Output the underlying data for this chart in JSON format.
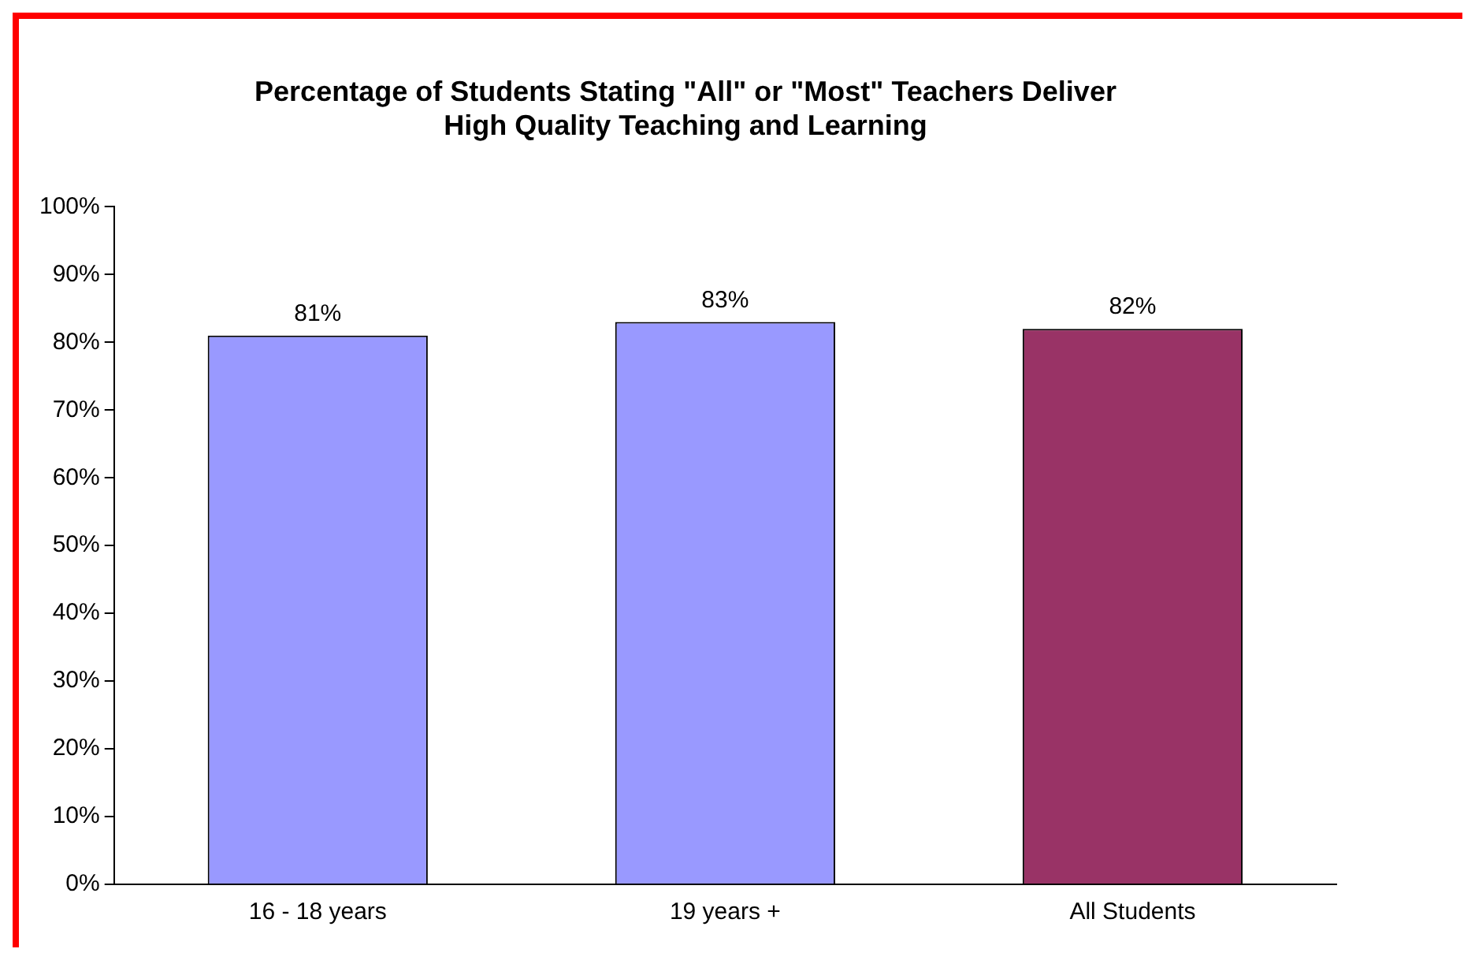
{
  "chart_data": {
    "type": "bar",
    "title": "Percentage of Students Stating \"All\" or \"Most\" Teachers Deliver\nHigh Quality Teaching and Learning",
    "categories": [
      "16 - 18 years",
      "19 years +",
      "All Students"
    ],
    "values": [
      81,
      83,
      82
    ],
    "colors": [
      "#9999ff",
      "#9999ff",
      "#993366"
    ],
    "value_labels": [
      "81%",
      "83%",
      "82%"
    ],
    "ylim": [
      0,
      100
    ],
    "yticks": [
      {
        "value": 0,
        "label": "0%"
      },
      {
        "value": 10,
        "label": "10%"
      },
      {
        "value": 20,
        "label": "20%"
      },
      {
        "value": 30,
        "label": "30%"
      },
      {
        "value": 40,
        "label": "40%"
      },
      {
        "value": 50,
        "label": "50%"
      },
      {
        "value": 60,
        "label": "60%"
      },
      {
        "value": 70,
        "label": "70%"
      },
      {
        "value": 80,
        "label": "80%"
      },
      {
        "value": 90,
        "label": "90%"
      },
      {
        "value": 100,
        "label": "100%"
      }
    ],
    "grid": false,
    "legend": false
  }
}
